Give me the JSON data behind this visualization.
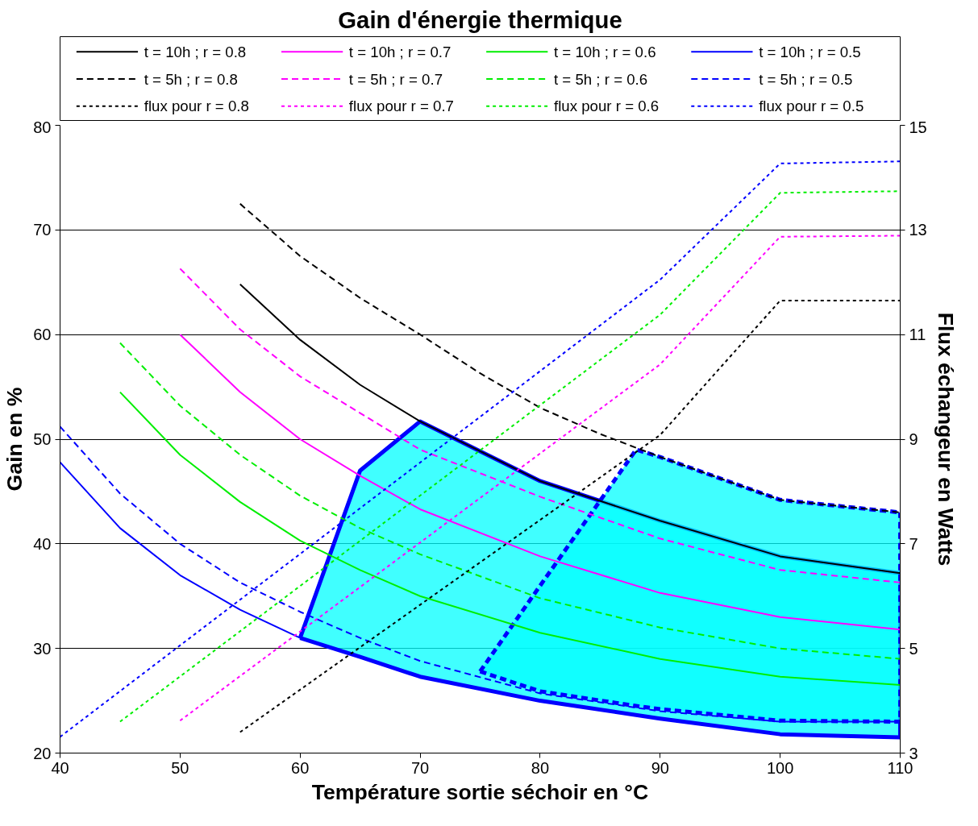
{
  "chart_data": {
    "type": "line",
    "title": "Gain d'énergie thermique",
    "xlabel": "Température sortie séchoir en °C",
    "ylabel": "Gain en %",
    "y2label": "Flux échangeur en Watts",
    "xlim": [
      40,
      110
    ],
    "xticks": [
      40,
      50,
      60,
      70,
      80,
      90,
      100,
      110
    ],
    "ylim": [
      20,
      80
    ],
    "yticks": [
      20,
      30,
      40,
      50,
      60,
      70,
      80
    ],
    "y2lim": [
      3,
      15
    ],
    "y2ticks": [
      3,
      5,
      7,
      9,
      11,
      13,
      15
    ],
    "grid": "y",
    "legend": "top",
    "series": [
      {
        "type": "line",
        "color": "#0000ff",
        "line_style": "solid",
        "x": [
          60,
          65,
          70,
          80,
          90,
          100,
          110
        ],
        "values": [
          31,
          47,
          51.7,
          46,
          42.2,
          38.8,
          37.2
        ],
        "upper": [
          31,
          47,
          51.7,
          46,
          42.2,
          38.8,
          37.2
        ],
        "lower": [
          31,
          29.2,
          27.3,
          25.0,
          23.3,
          21.8,
          21.5
        ]
      },
      {
        "type": "line",
        "color": "#0000ff",
        "line_style": "solid",
        "x": [
          60,
          65,
          70,
          80,
          90,
          100,
          110,
          110
        ],
        "values": [
          31,
          29.2,
          27.3,
          25.0,
          23.3,
          21.8,
          21.5,
          37.2
        ]
      },
      {
        "type": "line",
        "color": "#0000ff",
        "line_style": "dashed",
        "x": [
          75,
          80,
          88,
          90,
          100,
          110
        ],
        "values": [
          27.8,
          36,
          49,
          48.3,
          44.2,
          43
        ],
        "upper": [
          27.8,
          36,
          49,
          48.3,
          44.2,
          43
        ],
        "lower": [
          27.8,
          25.9,
          24.5,
          24.2,
          23.1,
          23
        ]
      },
      {
        "type": "line",
        "color": "#0000ff",
        "line_style": "dashed",
        "x": [
          75,
          80,
          88,
          90,
          100,
          110,
          110
        ],
        "values": [
          27.8,
          25.9,
          24.5,
          24.2,
          23.1,
          23,
          43
        ]
      },
      {
        "name": "t = 10h ; r = 0.8",
        "color": "#000000",
        "line_style": "solid",
        "x": [
          55,
          60,
          65,
          70,
          80,
          90,
          100,
          110
        ],
        "values": [
          64.8,
          59.5,
          55.2,
          51.7,
          46,
          42.2,
          38.8,
          37.2
        ]
      },
      {
        "name": "t = 10h ; r = 0.7",
        "color": "#ff00ff",
        "line_style": "solid",
        "x": [
          50,
          55,
          60,
          65,
          70,
          80,
          90,
          100,
          110
        ],
        "values": [
          60,
          54.5,
          50,
          46.5,
          43.3,
          38.8,
          35.3,
          33,
          31.8
        ]
      },
      {
        "name": "t = 10h ; r = 0.6",
        "color": "#00ee00",
        "line_style": "solid",
        "x": [
          45,
          50,
          55,
          60,
          65,
          70,
          80,
          90,
          100,
          110
        ],
        "values": [
          54.5,
          48.5,
          44,
          40.3,
          37.5,
          35,
          31.5,
          29,
          27.3,
          26.5
        ]
      },
      {
        "name": "t = 10h ; r = 0.5",
        "color": "#0000ff",
        "line_style": "solid",
        "x": [
          40,
          45,
          50,
          55,
          60,
          70,
          80,
          90,
          100,
          110
        ],
        "values": [
          47.8,
          41.5,
          37,
          33.7,
          31,
          27.3,
          25,
          23.3,
          21.8,
          21.5
        ]
      },
      {
        "name": "t = 5h ; r = 0.8",
        "color": "#000000",
        "line_style": "dashed",
        "x": [
          55,
          60,
          65,
          70,
          75,
          80,
          85,
          90,
          100,
          110
        ],
        "values": [
          72.5,
          67.5,
          63.5,
          60,
          56.3,
          53,
          50.5,
          48.3,
          44.2,
          43
        ]
      },
      {
        "name": "t = 5h ; r = 0.7",
        "color": "#ff00ff",
        "line_style": "dashed",
        "x": [
          50,
          55,
          60,
          65,
          70,
          80,
          90,
          100,
          110
        ],
        "values": [
          66.3,
          60.5,
          56,
          52.5,
          49,
          44.5,
          40.5,
          37.5,
          36.3
        ]
      },
      {
        "name": "t = 5h ; r = 0.6",
        "color": "#00ee00",
        "line_style": "dashed",
        "x": [
          45,
          50,
          55,
          60,
          65,
          70,
          80,
          90,
          100,
          110
        ],
        "values": [
          59.2,
          53.2,
          48.5,
          44.6,
          41.5,
          39,
          34.8,
          32,
          30,
          29
        ]
      },
      {
        "name": "t = 5h ; r = 0.5",
        "color": "#0000ff",
        "line_style": "dashed",
        "x": [
          40,
          45,
          50,
          55,
          60,
          65,
          70,
          80,
          90,
          100,
          110
        ],
        "values": [
          51.2,
          44.8,
          40,
          36.3,
          33.5,
          31,
          28.8,
          25.7,
          24,
          23,
          23
        ]
      },
      {
        "name": "flux pour r = 0.8",
        "color": "#000000",
        "line_style": "dotted",
        "axis": "y2",
        "x": [
          55,
          90,
          100,
          110
        ],
        "values": [
          3.4,
          9.08,
          11.65,
          11.65
        ]
      },
      {
        "name": "flux pour r = 0.7",
        "color": "#ff00ff",
        "line_style": "dotted",
        "axis": "y2",
        "x": [
          50,
          90,
          100,
          110
        ],
        "values": [
          3.62,
          10.43,
          12.87,
          12.89
        ]
      },
      {
        "name": "flux pour r = 0.6",
        "color": "#00ee00",
        "line_style": "dotted",
        "axis": "y2",
        "x": [
          45,
          90,
          100,
          110
        ],
        "values": [
          3.6,
          11.38,
          13.71,
          13.74
        ]
      },
      {
        "name": "flux pour r = 0.5",
        "color": "#0000ff",
        "line_style": "dotted",
        "axis": "y2",
        "x": [
          40,
          90,
          100,
          110
        ],
        "values": [
          3.31,
          12.05,
          14.27,
          14.31
        ]
      }
    ]
  }
}
